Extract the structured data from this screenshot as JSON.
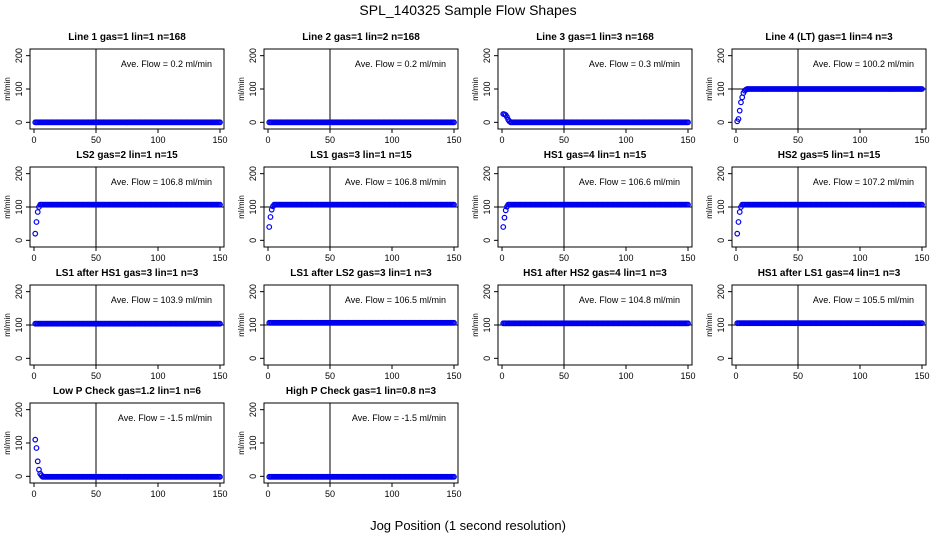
{
  "title": "SPL_140325  Sample Flow Shapes",
  "x_axis_title": "Jog Position (1 second resolution)",
  "colors": {
    "points": "#0000ee",
    "axes": "#000000",
    "background": "#ffffff"
  },
  "chart_data": [
    {
      "type": "scatter",
      "title": "Line 1 gas=1 lin=1 n=168",
      "ylabel": "ml/min",
      "annotation": "Ave. Flow =  0.2  ml/min",
      "xlim": [
        0,
        150
      ],
      "ylim": [
        -20,
        220
      ],
      "xticks": [
        0,
        50,
        100,
        150
      ],
      "yticks": [
        0,
        100,
        200
      ],
      "vline": 50,
      "hline": null,
      "startup": [],
      "plateau": {
        "from": 1,
        "to": 150,
        "value": 0
      }
    },
    {
      "type": "scatter",
      "title": "Line 2 gas=1 lin=2 n=168",
      "ylabel": "ml/min",
      "annotation": "Ave. Flow =  0.2  ml/min",
      "xlim": [
        0,
        150
      ],
      "ylim": [
        -20,
        220
      ],
      "xticks": [
        0,
        50,
        100,
        150
      ],
      "yticks": [
        0,
        100,
        200
      ],
      "vline": 50,
      "hline": null,
      "startup": [],
      "plateau": {
        "from": 1,
        "to": 150,
        "value": 0
      }
    },
    {
      "type": "scatter",
      "title": "Line 3 gas=1 lin=3 n=168",
      "ylabel": "ml/min",
      "annotation": "Ave. Flow =  0.3  ml/min",
      "xlim": [
        0,
        150
      ],
      "ylim": [
        -20,
        220
      ],
      "xticks": [
        0,
        50,
        100,
        150
      ],
      "yticks": [
        0,
        100,
        200
      ],
      "vline": 50,
      "hline": null,
      "startup": [
        [
          1,
          25
        ],
        [
          2,
          24
        ],
        [
          3,
          22
        ],
        [
          4,
          16
        ],
        [
          5,
          8
        ],
        [
          6,
          3
        ]
      ],
      "plateau": {
        "from": 7,
        "to": 150,
        "value": 0
      }
    },
    {
      "type": "scatter",
      "title": "Line 4 (LT) gas=1 lin=4 n=3",
      "ylabel": "ml/min",
      "annotation": "Ave. Flow =  100.2  ml/min",
      "xlim": [
        0,
        150
      ],
      "ylim": [
        -20,
        220
      ],
      "xticks": [
        0,
        50,
        100,
        150
      ],
      "yticks": [
        0,
        100,
        200
      ],
      "vline": 50,
      "hline": 100,
      "startup": [
        [
          1,
          3
        ],
        [
          2,
          10
        ],
        [
          3,
          35
        ],
        [
          4,
          60
        ],
        [
          5,
          75
        ],
        [
          6,
          88
        ],
        [
          7,
          95
        ],
        [
          8,
          98
        ]
      ],
      "plateau": {
        "from": 9,
        "to": 150,
        "value": 100
      }
    },
    {
      "type": "scatter",
      "title": "LS2 gas=2 lin=1 n=15",
      "ylabel": "ml/min",
      "annotation": "Ave. Flow =  106.8  ml/min",
      "xlim": [
        0,
        150
      ],
      "ylim": [
        -20,
        220
      ],
      "xticks": [
        0,
        50,
        100,
        150
      ],
      "yticks": [
        0,
        100,
        200
      ],
      "vline": 50,
      "hline": 100,
      "startup": [
        [
          1,
          20
        ],
        [
          2,
          55
        ],
        [
          3,
          85
        ],
        [
          4,
          100
        ]
      ],
      "plateau": {
        "from": 5,
        "to": 150,
        "value": 107
      }
    },
    {
      "type": "scatter",
      "title": "LS1 gas=3 lin=1 n=15",
      "ylabel": "ml/min",
      "annotation": "Ave. Flow =  106.8  ml/min",
      "xlim": [
        0,
        150
      ],
      "ylim": [
        -20,
        220
      ],
      "xticks": [
        0,
        50,
        100,
        150
      ],
      "yticks": [
        0,
        100,
        200
      ],
      "vline": 50,
      "hline": 100,
      "startup": [
        [
          1,
          40
        ],
        [
          2,
          70
        ],
        [
          3,
          92
        ],
        [
          4,
          102
        ]
      ],
      "plateau": {
        "from": 5,
        "to": 150,
        "value": 107
      }
    },
    {
      "type": "scatter",
      "title": "HS1 gas=4 lin=1 n=15",
      "ylabel": "ml/min",
      "annotation": "Ave. Flow =  106.6  ml/min",
      "xlim": [
        0,
        150
      ],
      "ylim": [
        -20,
        220
      ],
      "xticks": [
        0,
        50,
        100,
        150
      ],
      "yticks": [
        0,
        100,
        200
      ],
      "vline": 50,
      "hline": 100,
      "startup": [
        [
          1,
          40
        ],
        [
          2,
          68
        ],
        [
          3,
          90
        ],
        [
          4,
          101
        ]
      ],
      "plateau": {
        "from": 5,
        "to": 150,
        "value": 107
      }
    },
    {
      "type": "scatter",
      "title": "HS2 gas=5 lin=1 n=15",
      "ylabel": "ml/min",
      "annotation": "Ave. Flow =  107.2  ml/min",
      "xlim": [
        0,
        150
      ],
      "ylim": [
        -20,
        220
      ],
      "xticks": [
        0,
        50,
        100,
        150
      ],
      "yticks": [
        0,
        100,
        200
      ],
      "vline": 50,
      "hline": 100,
      "startup": [
        [
          1,
          20
        ],
        [
          2,
          55
        ],
        [
          3,
          85
        ],
        [
          4,
          100
        ]
      ],
      "plateau": {
        "from": 5,
        "to": 150,
        "value": 107
      }
    },
    {
      "type": "scatter",
      "title": "LS1 after HS1 gas=3 lin=1 n=3",
      "ylabel": "ml/min",
      "annotation": "Ave. Flow =  103.9  ml/min",
      "xlim": [
        0,
        150
      ],
      "ylim": [
        -20,
        220
      ],
      "xticks": [
        0,
        50,
        100,
        150
      ],
      "yticks": [
        0,
        100,
        200
      ],
      "vline": 50,
      "hline": 100,
      "startup": [],
      "plateau": {
        "from": 1,
        "to": 150,
        "value": 104
      }
    },
    {
      "type": "scatter",
      "title": "LS1 after LS2 gas=3 lin=1 n=3",
      "ylabel": "ml/min",
      "annotation": "Ave. Flow =  106.5  ml/min",
      "xlim": [
        0,
        150
      ],
      "ylim": [
        -20,
        220
      ],
      "xticks": [
        0,
        50,
        100,
        150
      ],
      "yticks": [
        0,
        100,
        200
      ],
      "vline": 50,
      "hline": 100,
      "startup": [],
      "plateau": {
        "from": 1,
        "to": 150,
        "value": 106.5
      }
    },
    {
      "type": "scatter",
      "title": "HS1 after HS2 gas=4 lin=1 n=3",
      "ylabel": "ml/min",
      "annotation": "Ave. Flow =  104.8  ml/min",
      "xlim": [
        0,
        150
      ],
      "ylim": [
        -20,
        220
      ],
      "xticks": [
        0,
        50,
        100,
        150
      ],
      "yticks": [
        0,
        100,
        200
      ],
      "vline": 50,
      "hline": 100,
      "startup": [],
      "plateau": {
        "from": 1,
        "to": 150,
        "value": 105
      }
    },
    {
      "type": "scatter",
      "title": "HS1 after LS1 gas=4 lin=1 n=3",
      "ylabel": "ml/min",
      "annotation": "Ave. Flow =  105.5  ml/min",
      "xlim": [
        0,
        150
      ],
      "ylim": [
        -20,
        220
      ],
      "xticks": [
        0,
        50,
        100,
        150
      ],
      "yticks": [
        0,
        100,
        200
      ],
      "vline": 50,
      "hline": 100,
      "startup": [],
      "plateau": {
        "from": 1,
        "to": 150,
        "value": 105.5
      }
    },
    {
      "type": "scatter",
      "title": "Low P Check gas=1.2 lin=1 n=6",
      "ylabel": "ml/min",
      "annotation": "Ave. Flow =  -1.5  ml/min",
      "xlim": [
        0,
        150
      ],
      "ylim": [
        -20,
        220
      ],
      "xticks": [
        0,
        50,
        100,
        150
      ],
      "yticks": [
        0,
        100,
        200
      ],
      "vline": 50,
      "hline": null,
      "startup": [
        [
          1,
          110
        ],
        [
          2,
          85
        ],
        [
          3,
          45
        ],
        [
          4,
          20
        ],
        [
          5,
          8
        ],
        [
          6,
          3
        ]
      ],
      "plateau": {
        "from": 7,
        "to": 150,
        "value": -1.5
      }
    },
    {
      "type": "scatter",
      "title": "High P Check gas=1 lin=0.8 n=3",
      "ylabel": "ml/min",
      "annotation": "Ave. Flow =  -1.5  ml/min",
      "xlim": [
        0,
        150
      ],
      "ylim": [
        -20,
        220
      ],
      "xticks": [
        0,
        50,
        100,
        150
      ],
      "yticks": [
        0,
        100,
        200
      ],
      "vline": 50,
      "hline": null,
      "startup": [],
      "plateau": {
        "from": 1,
        "to": 150,
        "value": -1.5
      }
    }
  ]
}
